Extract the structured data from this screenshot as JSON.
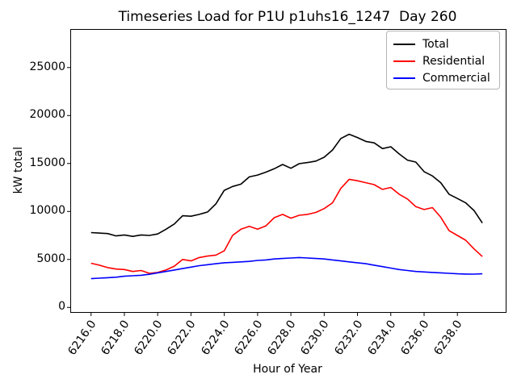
{
  "figure": {
    "title": "Timeseries Load for P1U p1uhs16_1247  Day 260"
  },
  "chart_data": {
    "type": "line",
    "title": "Timeseries Load for P1U p1uhs16_1247  Day 260",
    "xlabel": "Hour of Year",
    "ylabel": "kW total",
    "grid": false,
    "legend_position": "upper right",
    "xlim": [
      6214.8,
      6240.9
    ],
    "ylim": [
      -480,
      28930
    ],
    "x_ticks": [
      6216,
      6218,
      6220,
      6222,
      6224,
      6226,
      6228,
      6230,
      6232,
      6234,
      6236,
      6238
    ],
    "x_tick_labels": [
      "6216.0",
      "6218.0",
      "6220.0",
      "6222.0",
      "6224.0",
      "6226.0",
      "6228.0",
      "6230.0",
      "6232.0",
      "6234.0",
      "6236.0",
      "6238.0"
    ],
    "y_ticks": [
      0,
      5000,
      10000,
      15000,
      20000,
      25000
    ],
    "y_tick_labels": [
      "0",
      "5000",
      "10000",
      "15000",
      "20000",
      "25000"
    ],
    "x": [
      6216.0,
      6216.5,
      6217.0,
      6217.5,
      6218.0,
      6218.5,
      6219.0,
      6219.5,
      6220.0,
      6220.5,
      6221.0,
      6221.5,
      6222.0,
      6222.5,
      6223.0,
      6223.5,
      6224.0,
      6224.5,
      6225.0,
      6225.5,
      6226.0,
      6226.5,
      6227.0,
      6227.5,
      6228.0,
      6228.5,
      6229.0,
      6229.5,
      6230.0,
      6230.5,
      6231.0,
      6231.5,
      6232.0,
      6232.5,
      6233.0,
      6233.5,
      6234.0,
      6234.5,
      6235.0,
      6235.5,
      6236.0,
      6236.5,
      6237.0,
      6237.5,
      6238.0,
      6238.5,
      6239.0,
      6239.5
    ],
    "series": [
      {
        "name": "Total",
        "color": "#000000",
        "values": [
          7800,
          7750,
          7700,
          7450,
          7550,
          7400,
          7550,
          7500,
          7650,
          8150,
          8700,
          9550,
          9500,
          9700,
          9950,
          10800,
          12200,
          12600,
          12850,
          13600,
          13800,
          14100,
          14450,
          14900,
          14500,
          14980,
          15100,
          15250,
          15650,
          16400,
          17600,
          18050,
          17700,
          17300,
          17150,
          16550,
          16750,
          16000,
          15350,
          15150,
          14150,
          13700,
          13000,
          11800,
          11350,
          10900,
          10100,
          8800
        ]
      },
      {
        "name": "Residential",
        "color": "#ff0000",
        "values": [
          4600,
          4400,
          4150,
          4000,
          3950,
          3750,
          3850,
          3550,
          3650,
          3900,
          4300,
          5000,
          4850,
          5200,
          5350,
          5450,
          5900,
          7500,
          8150,
          8450,
          8150,
          8500,
          9350,
          9700,
          9300,
          9600,
          9700,
          9900,
          10300,
          10900,
          12400,
          13350,
          13200,
          13000,
          12800,
          12300,
          12500,
          11800,
          11300,
          10500,
          10200,
          10400,
          9400,
          8000,
          7500,
          7000,
          6100,
          5300
        ]
      },
      {
        "name": "Commercial",
        "color": "#0000ff",
        "values": [
          3000,
          3050,
          3100,
          3150,
          3250,
          3300,
          3350,
          3450,
          3600,
          3750,
          3900,
          4050,
          4200,
          4350,
          4450,
          4550,
          4650,
          4700,
          4750,
          4800,
          4900,
          4950,
          5050,
          5100,
          5150,
          5200,
          5150,
          5100,
          5050,
          4950,
          4850,
          4750,
          4650,
          4550,
          4400,
          4250,
          4100,
          3950,
          3850,
          3750,
          3700,
          3650,
          3600,
          3550,
          3500,
          3480,
          3470,
          3500
        ]
      }
    ]
  },
  "legend": {
    "items": [
      "Total",
      "Residential",
      "Commercial"
    ]
  }
}
